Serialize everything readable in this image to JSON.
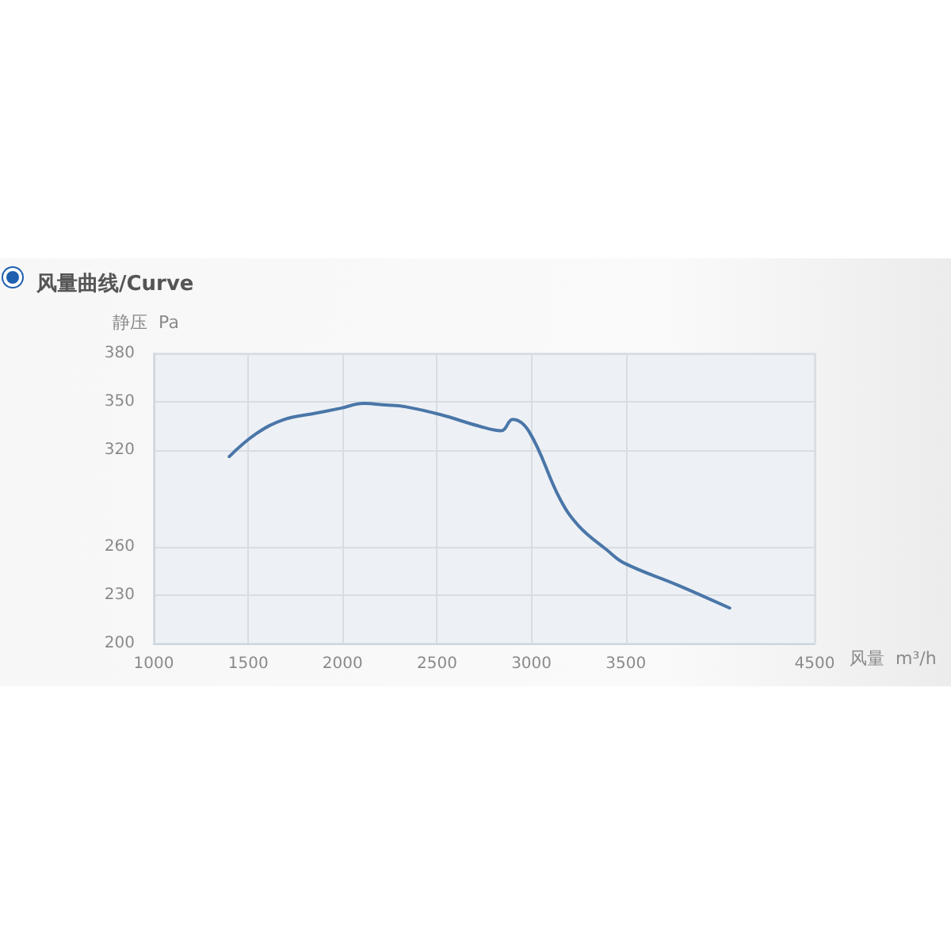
{
  "chart_data": {
    "type": "line",
    "title": "风量曲线/Curve",
    "xlabel": "风量  m³/h",
    "ylabel": "静压  Pa",
    "x": [
      1400,
      1540,
      1690,
      1860,
      1990,
      2110,
      2230,
      2330,
      2520,
      2720,
      2840,
      2900,
      2990,
      3150,
      3250,
      3400,
      3490,
      3780,
      4050
    ],
    "series": [
      {
        "color": "#4a76a8",
        "values": [
          316,
          330,
          339,
          343,
          346,
          349,
          348,
          347,
          342,
          335,
          332,
          339,
          331,
          290,
          273,
          258,
          250,
          236,
          222
        ]
      }
    ],
    "xlim": [
      1000,
      4500
    ],
    "xticks": [
      1000,
      1500,
      2000,
      2500,
      3000,
      3500,
      4500
    ],
    "ylim": [
      200,
      380
    ],
    "yticks": [
      200,
      230,
      260,
      320,
      350,
      380
    ],
    "grid": true,
    "marker": "none",
    "line_style": "solid"
  }
}
